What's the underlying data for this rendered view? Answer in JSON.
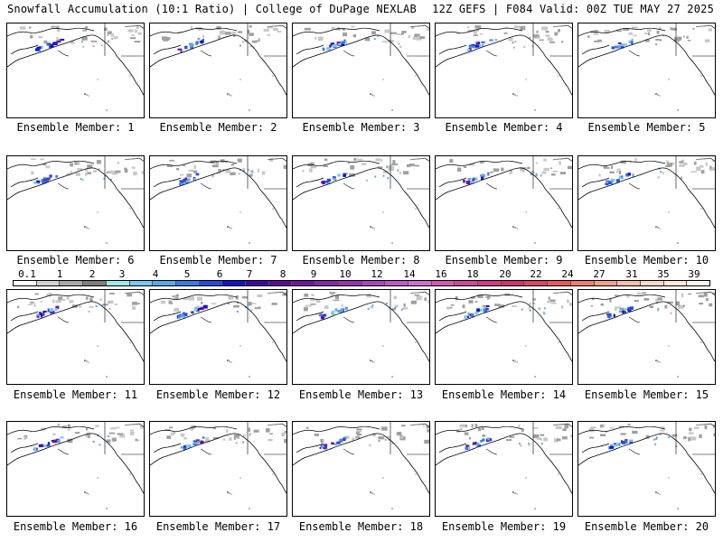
{
  "header": {
    "left": "Snowfall Accumulation (10:1 Ratio) | College of DuPage NEXLAB",
    "right": "12Z GEFS | F084 Valid: 00Z TUE MAY 27 2025"
  },
  "members": [
    {
      "label": "Ensemble Member: 1"
    },
    {
      "label": "Ensemble Member: 2"
    },
    {
      "label": "Ensemble Member: 3"
    },
    {
      "label": "Ensemble Member: 4"
    },
    {
      "label": "Ensemble Member: 5"
    },
    {
      "label": "Ensemble Member: 6"
    },
    {
      "label": "Ensemble Member: 7"
    },
    {
      "label": "Ensemble Member: 8"
    },
    {
      "label": "Ensemble Member: 9"
    },
    {
      "label": "Ensemble Member: 10"
    },
    {
      "label": "Ensemble Member: 11"
    },
    {
      "label": "Ensemble Member: 12"
    },
    {
      "label": "Ensemble Member: 13"
    },
    {
      "label": "Ensemble Member: 14"
    },
    {
      "label": "Ensemble Member: 15"
    },
    {
      "label": "Ensemble Member: 16"
    },
    {
      "label": "Ensemble Member: 17"
    },
    {
      "label": "Ensemble Member: 18"
    },
    {
      "label": "Ensemble Member: 19"
    },
    {
      "label": "Ensemble Member: 20"
    }
  ],
  "legend": {
    "ticks": [
      "0.1",
      "1",
      "2",
      "3",
      "4",
      "5",
      "6",
      "7",
      "8",
      "9",
      "10",
      "12",
      "14",
      "16",
      "18",
      "20",
      "22",
      "24",
      "27",
      "31",
      "35",
      "39"
    ],
    "colors": [
      "#ffffff",
      "#d2d2d2",
      "#a8a8a8",
      "#7f7f7f",
      "#9fe8f0",
      "#78c8f5",
      "#5aa8f0",
      "#3c78e6",
      "#2848dc",
      "#1414c8",
      "#3c0aa0",
      "#5a0a96",
      "#6e14a0",
      "#8228aa",
      "#9632b4",
      "#aa46be",
      "#be5ac8",
      "#d26ed2",
      "#d25ab4",
      "#d2469b",
      "#d23c82",
      "#d2326e",
      "#dc4664",
      "#e65a5a",
      "#f07d6e",
      "#f5a08c",
      "#f8beaa",
      "#fad8c8",
      "#fbe8dc",
      "#fdf4ee"
    ]
  }
}
